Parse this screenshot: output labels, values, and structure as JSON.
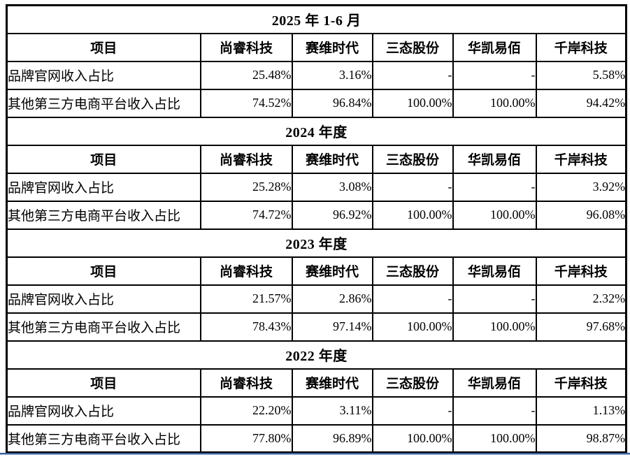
{
  "page": {
    "accent_line_color": "#3d5f9a",
    "border_color": "#000000"
  },
  "table": {
    "row_header": "项目",
    "companies": [
      "尚睿科技",
      "赛维时代",
      "三态股份",
      "华凯易佰",
      "千岸科技"
    ],
    "row_labels": [
      "品牌官网收入占比",
      "其他第三方电商平台收入占比"
    ],
    "sections": [
      {
        "title": "2025 年 1-6 月",
        "rows": [
          [
            "25.48%",
            "3.16%",
            "-",
            "-",
            "5.58%"
          ],
          [
            "74.52%",
            "96.84%",
            "100.00%",
            "100.00%",
            "94.42%"
          ]
        ]
      },
      {
        "title": "2024 年度",
        "rows": [
          [
            "25.28%",
            "3.08%",
            "-",
            "-",
            "3.92%"
          ],
          [
            "74.72%",
            "96.92%",
            "100.00%",
            "100.00%",
            "96.08%"
          ]
        ]
      },
      {
        "title": "2023 年度",
        "rows": [
          [
            "21.57%",
            "2.86%",
            "-",
            "-",
            "2.32%"
          ],
          [
            "78.43%",
            "97.14%",
            "100.00%",
            "100.00%",
            "97.68%"
          ]
        ]
      },
      {
        "title": "2022 年度",
        "rows": [
          [
            "22.20%",
            "3.11%",
            "-",
            "-",
            "1.13%"
          ],
          [
            "77.80%",
            "96.89%",
            "100.00%",
            "100.00%",
            "98.87%"
          ]
        ]
      }
    ]
  }
}
